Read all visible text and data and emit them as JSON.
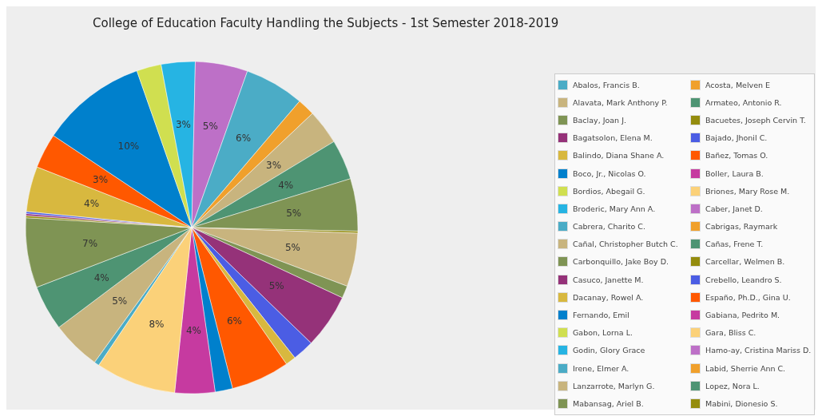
{
  "chart_data": {
    "type": "pie",
    "title": "College of Education Faculty Handling the Subjects - 1st Semester 2018-2019",
    "categories": [
      "Abalos, Francis B.",
      "Acosta, Melven E",
      "Alavata, Mark Anthony P.",
      "Armateo, Antonio R.",
      "Baclay, Joan J.",
      "Bacuetes, Joseph Cervin T.",
      "Bagatsolon, Elena M.",
      "Bajado, Jhonil C.",
      "Balindo, Diana Shane A.",
      "Bañez, Tomas O.",
      "Boco, Jr., Nicolas O.",
      "Boller, Laura B.",
      "Bordios, Abegail G.",
      "Briones, Mary Rose M.",
      "Broderic, Mary Ann A.",
      "Caber, Janet D.",
      "Cabrera, Charito C.",
      "Cabrigas, Raymark",
      "Cañal, Christopher Butch C.",
      "Cañas, Frene T.",
      "Carbonquillo, Jake Boy D.",
      "Carcellar, Welmen B.",
      "Casuco, Janette M.",
      "Crebello, Leandro S.",
      "Dacanay, Rowel A.",
      "Españo, Ph.D., Gina U.",
      "Fernando, Emil",
      "Gabiana, Pedrito M.",
      "Gabon, Lorna L.",
      "Gara, Bliss C.",
      "Godin, Glory Grace",
      "Hamo-ay, Cristina Mariss D.",
      "Irene, Elmer A.",
      "Labid, Sherrie Ann C.",
      "Lanzarrote, Marlyn G.",
      "Lopez, Nora L.",
      "Mabansag, Ariel B.",
      "Mabini, Dionesio S.",
      null,
      null,
      null,
      null,
      null,
      null,
      null
    ],
    "values": [
      0.5,
      0,
      4.8,
      4.4,
      6.8,
      0.2,
      0.2,
      0.2,
      4.4,
      3.4,
      10.3,
      0,
      2.4,
      0,
      3.3,
      5.1,
      5.8,
      1.7,
      3.4,
      3.9,
      5.1,
      0.2,
      0,
      0,
      0,
      0,
      0,
      0,
      0,
      0,
      0,
      0,
      0,
      0,
      5.2,
      0,
      1.2,
      0,
      5.3,
      2.1,
      1.0,
      5.7,
      1.7,
      3.9,
      7.8
    ],
    "colors": [
      "#4bacc6",
      "#f0a02c",
      "#c8b47e",
      "#4e9473",
      "#7f9454",
      "#948c0e",
      "#953279",
      "#4b5de4",
      "#d8b83f",
      "#ff5800",
      "#0080cc",
      "#c63aa0",
      "#d0df50",
      "#fbd179",
      "#26b4e3",
      "#bd70c7",
      "#4bacc6",
      "#f0a02c",
      "#c8b47e",
      "#4e9473",
      "#7f9454",
      "#948c0e",
      "#953279",
      "#4b5de4",
      "#d8b83f",
      "#ff5800",
      "#0080cc",
      "#c63aa0",
      "#d0df50",
      "#fbd179",
      "#26b4e3",
      "#bd70c7",
      "#4bacc6",
      "#f0a02c",
      "#c8b47e",
      "#4e9473",
      "#7f9454",
      "#948c0e",
      "#953279",
      "#4b5de4",
      "#d8b83f",
      "#ff5800",
      "#0080cc",
      "#c63aa0",
      "#fbd179"
    ],
    "value_labels": [
      null,
      null,
      "5%",
      "4%",
      "7%",
      null,
      null,
      null,
      "4%",
      "3%",
      "10%",
      null,
      null,
      null,
      "3%",
      "5%",
      "6%",
      null,
      "3%",
      "4%",
      "5%",
      null,
      null,
      null,
      null,
      null,
      null,
      null,
      null,
      null,
      null,
      null,
      null,
      null,
      "5%",
      null,
      null,
      null,
      "5%",
      null,
      null,
      "6%",
      null,
      "4%",
      "8%"
    ],
    "legend": "right"
  }
}
